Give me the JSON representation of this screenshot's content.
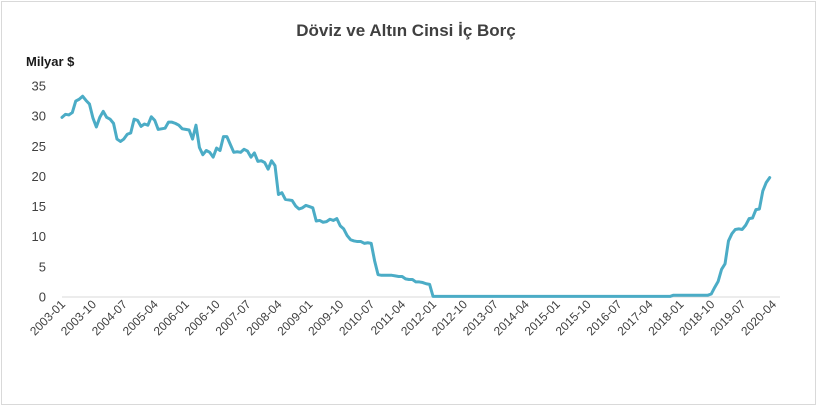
{
  "chart_data": {
    "type": "line",
    "title": "Döviz ve Altın Cinsi İç Borç",
    "ylabel": "Milyar $",
    "xlabel": "",
    "ylim": [
      0,
      35
    ],
    "yticks": [
      0,
      5,
      10,
      15,
      20,
      25,
      30,
      35
    ],
    "grid": false,
    "legend": "none",
    "line_color": "#4bacc6",
    "x_tick_labels": [
      "2003-01",
      "2003-10",
      "2004-07",
      "2005-04",
      "2006-01",
      "2006-10",
      "2007-07",
      "2008-04",
      "2009-01",
      "2009-10",
      "2010-07",
      "2011-04",
      "2012-01",
      "2012-10",
      "2013-07",
      "2014-04",
      "2015-01",
      "2015-10",
      "2016-07",
      "2017-04",
      "2018-01",
      "2018-10",
      "2019-07",
      "2020-04"
    ],
    "x_start": "2003-01",
    "x_end": "2020-06",
    "series": [
      {
        "points": [
          [
            "2003-01",
            29.8
          ],
          [
            "2003-02",
            30.3
          ],
          [
            "2003-03",
            30.2
          ],
          [
            "2003-04",
            30.6
          ],
          [
            "2003-05",
            32.5
          ],
          [
            "2003-06",
            32.8
          ],
          [
            "2003-07",
            33.3
          ],
          [
            "2003-08",
            32.6
          ],
          [
            "2003-09",
            32.0
          ],
          [
            "2003-10",
            29.7
          ],
          [
            "2003-11",
            28.2
          ],
          [
            "2003-12",
            29.8
          ],
          [
            "2004-01",
            30.8
          ],
          [
            "2004-02",
            29.8
          ],
          [
            "2004-03",
            29.5
          ],
          [
            "2004-04",
            28.8
          ],
          [
            "2004-05",
            26.2
          ],
          [
            "2004-06",
            25.8
          ],
          [
            "2004-07",
            26.2
          ],
          [
            "2004-08",
            27.0
          ],
          [
            "2004-09",
            27.2
          ],
          [
            "2004-10",
            29.5
          ],
          [
            "2004-11",
            29.3
          ],
          [
            "2004-12",
            28.3
          ],
          [
            "2005-01",
            28.7
          ],
          [
            "2005-02",
            28.5
          ],
          [
            "2005-03",
            29.9
          ],
          [
            "2005-04",
            29.3
          ],
          [
            "2005-05",
            27.8
          ],
          [
            "2005-06",
            27.9
          ],
          [
            "2005-07",
            28.0
          ],
          [
            "2005-08",
            29.0
          ],
          [
            "2005-09",
            29.0
          ],
          [
            "2005-10",
            28.8
          ],
          [
            "2005-11",
            28.5
          ],
          [
            "2005-12",
            27.9
          ],
          [
            "2006-01",
            27.8
          ],
          [
            "2006-02",
            27.7
          ],
          [
            "2006-03",
            26.2
          ],
          [
            "2006-04",
            28.5
          ],
          [
            "2006-05",
            24.8
          ],
          [
            "2006-06",
            23.6
          ],
          [
            "2006-07",
            24.3
          ],
          [
            "2006-08",
            24.0
          ],
          [
            "2006-09",
            23.2
          ],
          [
            "2006-10",
            24.7
          ],
          [
            "2006-11",
            24.3
          ],
          [
            "2006-12",
            26.6
          ],
          [
            "2007-01",
            26.6
          ],
          [
            "2007-02",
            25.3
          ],
          [
            "2007-03",
            24.0
          ],
          [
            "2007-04",
            24.1
          ],
          [
            "2007-05",
            24.0
          ],
          [
            "2007-06",
            24.5
          ],
          [
            "2007-07",
            24.2
          ],
          [
            "2007-08",
            23.2
          ],
          [
            "2007-09",
            23.9
          ],
          [
            "2007-10",
            22.5
          ],
          [
            "2007-11",
            22.6
          ],
          [
            "2007-12",
            22.3
          ],
          [
            "2008-01",
            21.2
          ],
          [
            "2008-02",
            22.6
          ],
          [
            "2008-03",
            21.8
          ],
          [
            "2008-04",
            17.0
          ],
          [
            "2008-05",
            17.3
          ],
          [
            "2008-06",
            16.2
          ],
          [
            "2008-07",
            16.1
          ],
          [
            "2008-08",
            16.0
          ],
          [
            "2008-09",
            15.1
          ],
          [
            "2008-10",
            14.6
          ],
          [
            "2008-11",
            14.8
          ],
          [
            "2008-12",
            15.2
          ],
          [
            "2009-01",
            15.0
          ],
          [
            "2009-02",
            14.8
          ],
          [
            "2009-03",
            12.6
          ],
          [
            "2009-04",
            12.7
          ],
          [
            "2009-05",
            12.4
          ],
          [
            "2009-06",
            12.5
          ],
          [
            "2009-07",
            12.9
          ],
          [
            "2009-08",
            12.7
          ],
          [
            "2009-09",
            13.0
          ],
          [
            "2009-10",
            11.8
          ],
          [
            "2009-11",
            11.3
          ],
          [
            "2009-12",
            10.2
          ],
          [
            "2010-01",
            9.5
          ],
          [
            "2010-02",
            9.3
          ],
          [
            "2010-03",
            9.2
          ],
          [
            "2010-04",
            9.2
          ],
          [
            "2010-05",
            8.9
          ],
          [
            "2010-06",
            9.0
          ],
          [
            "2010-07",
            8.9
          ],
          [
            "2010-08",
            6.0
          ],
          [
            "2010-09",
            3.7
          ],
          [
            "2010-10",
            3.6
          ],
          [
            "2010-11",
            3.6
          ],
          [
            "2010-12",
            3.6
          ],
          [
            "2011-01",
            3.6
          ],
          [
            "2011-02",
            3.5
          ],
          [
            "2011-03",
            3.4
          ],
          [
            "2011-04",
            3.4
          ],
          [
            "2011-05",
            3.0
          ],
          [
            "2011-06",
            2.9
          ],
          [
            "2011-07",
            2.9
          ],
          [
            "2011-08",
            2.5
          ],
          [
            "2011-09",
            2.5
          ],
          [
            "2011-10",
            2.4
          ],
          [
            "2011-11",
            2.2
          ],
          [
            "2011-12",
            2.1
          ],
          [
            "2012-01",
            0.1
          ],
          [
            "2012-10",
            0.1
          ],
          [
            "2013-07",
            0.1
          ],
          [
            "2014-04",
            0.1
          ],
          [
            "2015-01",
            0.1
          ],
          [
            "2015-10",
            0.1
          ],
          [
            "2016-07",
            0.1
          ],
          [
            "2017-04",
            0.1
          ],
          [
            "2017-10",
            0.1
          ],
          [
            "2017-11",
            0.3
          ],
          [
            "2018-01",
            0.3
          ],
          [
            "2018-04",
            0.3
          ],
          [
            "2018-07",
            0.3
          ],
          [
            "2018-09",
            0.3
          ],
          [
            "2018-10",
            0.5
          ],
          [
            "2018-11",
            1.6
          ],
          [
            "2018-12",
            2.6
          ],
          [
            "2019-01",
            4.6
          ],
          [
            "2019-02",
            5.5
          ],
          [
            "2019-03",
            9.3
          ],
          [
            "2019-04",
            10.5
          ],
          [
            "2019-05",
            11.2
          ],
          [
            "2019-06",
            11.3
          ],
          [
            "2019-07",
            11.2
          ],
          [
            "2019-08",
            11.9
          ],
          [
            "2019-09",
            13.0
          ],
          [
            "2019-10",
            13.1
          ],
          [
            "2019-11",
            14.5
          ],
          [
            "2019-12",
            14.6
          ],
          [
            "2020-01",
            17.6
          ],
          [
            "2020-02",
            19.0
          ],
          [
            "2020-03",
            19.8
          ]
        ]
      }
    ]
  }
}
